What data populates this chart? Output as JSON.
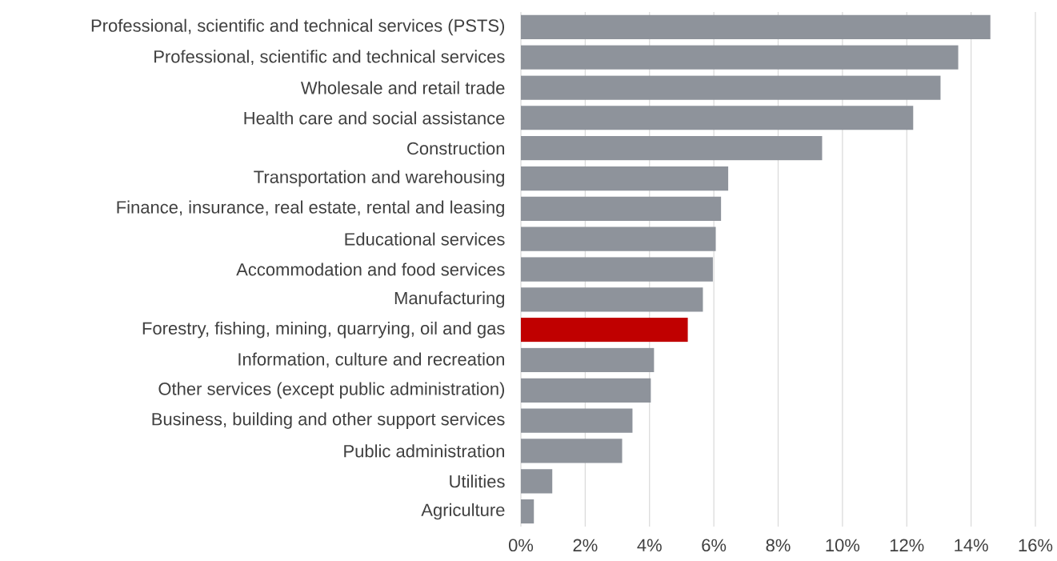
{
  "chart_data": {
    "type": "bar",
    "orientation": "horizontal",
    "categories": [
      "Professional, scientific and technical services (PSTS)",
      "Professional, scientific and technical services",
      "Wholesale and retail trade",
      "Health care and social assistance",
      "Construction",
      "Transportation and warehousing",
      "Finance, insurance, real estate, rental and leasing",
      "Educational services",
      "Accommodation and food services",
      "Manufacturing",
      "Forestry, fishing, mining, quarrying, oil and gas",
      "Information, culture and recreation",
      "Other services (except public administration)",
      "Business, building and other support services",
      "Public administration",
      "Utilities",
      "Agriculture"
    ],
    "values": [
      14.6,
      13.6,
      13.05,
      12.2,
      9.37,
      6.45,
      6.23,
      6.06,
      5.97,
      5.66,
      5.19,
      4.14,
      4.04,
      3.47,
      3.15,
      0.98,
      0.41
    ],
    "colors": [
      "#8e939b",
      "#8e939b",
      "#8e939b",
      "#8e939b",
      "#8e939b",
      "#8e939b",
      "#8e939b",
      "#8e939b",
      "#8e939b",
      "#8e939b",
      "#c00000",
      "#8e939b",
      "#8e939b",
      "#8e939b",
      "#8e939b",
      "#8e939b",
      "#8e939b"
    ],
    "xlim": [
      0,
      16
    ],
    "xticks": [
      {
        "value": 0,
        "label": "0%"
      },
      {
        "value": 2,
        "label": "2%"
      },
      {
        "value": 4,
        "label": "4%"
      },
      {
        "value": 6,
        "label": "6%"
      },
      {
        "value": 8,
        "label": "8%"
      },
      {
        "value": 10,
        "label": "10%"
      },
      {
        "value": 12,
        "label": "12%"
      },
      {
        "value": 14,
        "label": "14%"
      },
      {
        "value": 16,
        "label": "16%"
      }
    ],
    "grid": "x"
  }
}
